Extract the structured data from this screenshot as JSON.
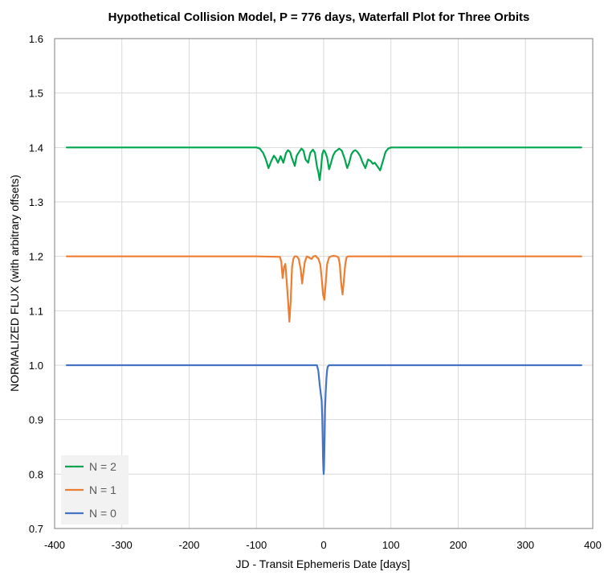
{
  "chart_data": {
    "type": "line",
    "title": "Hypothetical Collision Model, P = 776 days, Waterfall Plot for Three Orbits",
    "xlabel": "JD - Transit Ephemeris Date [days]",
    "ylabel": "NORMALIZED FLUX (with arbitrary offsets)",
    "xlim": [
      -400,
      400
    ],
    "ylim": [
      0.7,
      1.6
    ],
    "x_ticks": [
      -400,
      -300,
      -200,
      -100,
      0,
      100,
      200,
      300,
      400
    ],
    "x_tick_labels": [
      "-400",
      "-300",
      "-200",
      "-100",
      "0",
      "100",
      "200",
      "300",
      "400"
    ],
    "y_ticks": [
      0.7,
      0.8,
      0.9,
      1.0,
      1.1,
      1.2,
      1.3,
      1.4,
      1.5,
      1.6
    ],
    "y_tick_labels": [
      "0.7",
      "0.8",
      "0.9",
      "1.0",
      "1.1",
      "1.2",
      "1.3",
      "1.4",
      "1.5",
      "1.6"
    ],
    "grid": true,
    "legend_position": "bottom-left",
    "series": [
      {
        "name": "N = 2",
        "color": "#00a550",
        "x": [
          -382,
          -100,
          -95,
          -90,
          -86,
          -82,
          -78,
          -74,
          -71,
          -68,
          -64,
          -60,
          -56,
          -53,
          -50,
          -47,
          -43,
          -40,
          -36,
          -33,
          -30,
          -27,
          -23,
          -20,
          -16,
          -13,
          -10,
          -8,
          -6,
          -4,
          -2,
          0,
          2,
          5,
          8,
          11,
          14,
          17,
          20,
          23,
          27,
          31,
          35,
          38,
          41,
          44,
          47,
          50,
          54,
          58,
          62,
          66,
          70,
          73,
          76,
          80,
          84,
          88,
          92,
          96,
          100,
          105,
          110,
          383
        ],
        "y": [
          1.4,
          1.4,
          1.398,
          1.39,
          1.378,
          1.362,
          1.375,
          1.385,
          1.38,
          1.372,
          1.384,
          1.372,
          1.39,
          1.395,
          1.392,
          1.38,
          1.366,
          1.385,
          1.393,
          1.398,
          1.394,
          1.378,
          1.372,
          1.39,
          1.396,
          1.39,
          1.365,
          1.355,
          1.34,
          1.36,
          1.388,
          1.395,
          1.392,
          1.382,
          1.36,
          1.372,
          1.385,
          1.392,
          1.395,
          1.398,
          1.394,
          1.38,
          1.362,
          1.372,
          1.387,
          1.393,
          1.395,
          1.392,
          1.385,
          1.372,
          1.362,
          1.378,
          1.375,
          1.37,
          1.372,
          1.365,
          1.358,
          1.375,
          1.392,
          1.398,
          1.4,
          1.4,
          1.4,
          1.4
        ]
      },
      {
        "name": "N = 1",
        "color": "#ed7d31",
        "x": [
          -382,
          -100,
          -65,
          -63,
          -61,
          -59,
          -57,
          -55,
          -53,
          -51,
          -49,
          -47,
          -45,
          -43,
          -40,
          -37,
          -34,
          -32,
          -30,
          -28,
          -25,
          -22,
          -18,
          -15,
          -12,
          -10,
          -8,
          -5,
          -3,
          -1,
          1,
          3,
          5,
          8,
          11,
          15,
          19,
          22,
          24,
          26,
          28,
          30,
          32,
          34,
          36,
          40,
          383
        ],
        "y": [
          1.2,
          1.2,
          1.199,
          1.19,
          1.16,
          1.18,
          1.186,
          1.155,
          1.12,
          1.08,
          1.12,
          1.18,
          1.196,
          1.2,
          1.2,
          1.195,
          1.175,
          1.15,
          1.172,
          1.19,
          1.2,
          1.198,
          1.195,
          1.2,
          1.201,
          1.198,
          1.196,
          1.185,
          1.16,
          1.13,
          1.12,
          1.15,
          1.185,
          1.198,
          1.2,
          1.201,
          1.2,
          1.198,
          1.185,
          1.15,
          1.13,
          1.155,
          1.185,
          1.198,
          1.2,
          1.2,
          1.2
        ]
      },
      {
        "name": "N = 0",
        "color": "#4472c4",
        "x": [
          -382,
          -10,
          -8,
          -6,
          -4,
          -3,
          -2,
          -1.5,
          -1,
          -0.5,
          0,
          0.5,
          1,
          1.5,
          2,
          3,
          4,
          5,
          6,
          8,
          10,
          383
        ],
        "y": [
          1.0,
          1.0,
          0.99,
          0.965,
          0.945,
          0.935,
          0.9,
          0.87,
          0.83,
          0.81,
          0.8,
          0.81,
          0.84,
          0.88,
          0.92,
          0.95,
          0.975,
          0.99,
          0.997,
          1.0,
          1.0,
          1.0
        ]
      }
    ]
  }
}
